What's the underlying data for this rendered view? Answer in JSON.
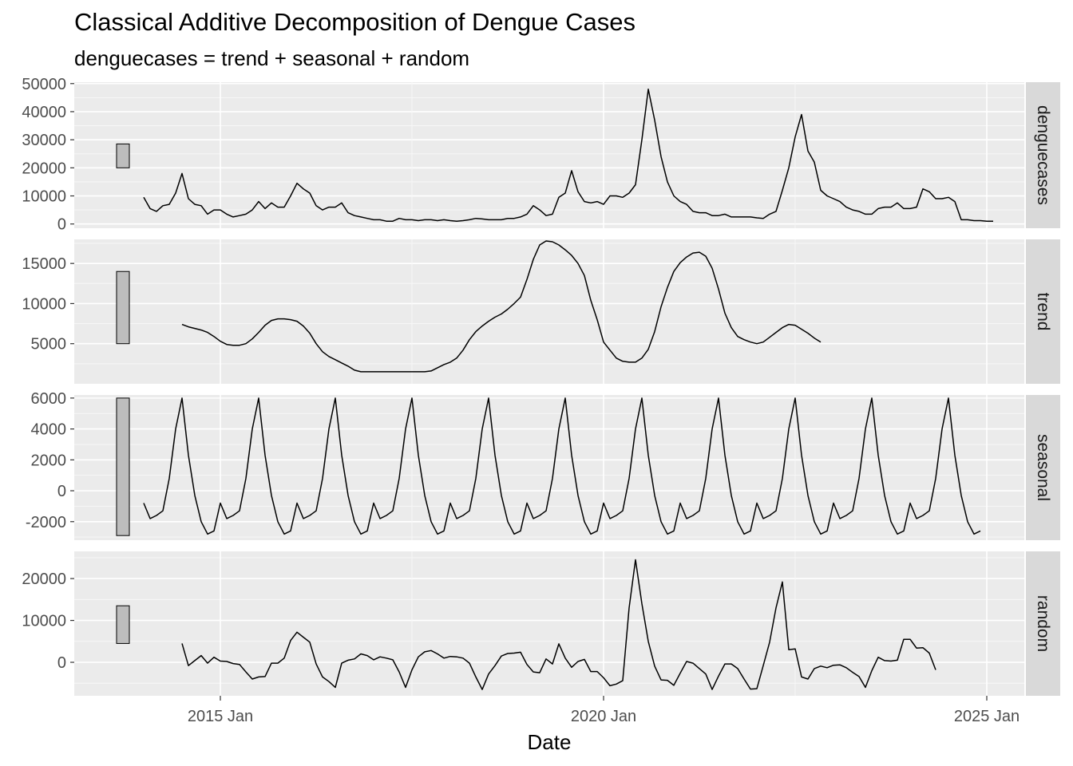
{
  "chart_data": {
    "type": "line",
    "title": "Classical Additive Decomposition of Dengue Cases",
    "subtitle": "denguecases = trend + seasonal + random",
    "xlabel": "Date",
    "x_start": "2014-01",
    "x_end": "2024-12",
    "x_ticks": [
      {
        "label": "2015 Jan",
        "date": "2015-01"
      },
      {
        "label": "2020 Jan",
        "date": "2020-01"
      },
      {
        "label": "2025 Jan",
        "date": "2025-01"
      }
    ],
    "grid": true,
    "facets": [
      {
        "name": "denguecases",
        "ylim": [
          -1500,
          50500
        ],
        "y_ticks": [
          0,
          10000,
          20000,
          30000,
          40000,
          50000
        ],
        "y_tick_labels": [
          "0",
          "10000",
          "20000",
          "30000",
          "40000",
          "50000"
        ],
        "scale_bar": [
          20000,
          28500
        ],
        "values": [
          9500,
          5500,
          4500,
          6500,
          7000,
          11000,
          18000,
          9000,
          7000,
          6500,
          3500,
          5000,
          5000,
          3500,
          2500,
          3000,
          3500,
          5000,
          8000,
          5500,
          7500,
          6000,
          6000,
          10000,
          14500,
          12500,
          11000,
          6500,
          5000,
          6000,
          6000,
          7500,
          4000,
          3000,
          2500,
          2000,
          1500,
          1500,
          1000,
          1000,
          2000,
          1500,
          1500,
          1200,
          1500,
          1500,
          1200,
          1500,
          1200,
          1000,
          1200,
          1500,
          2000,
          1800,
          1500,
          1500,
          1500,
          2000,
          2000,
          2500,
          3500,
          6500,
          5000,
          3000,
          3500,
          9500,
          11000,
          19000,
          11500,
          8000,
          7500,
          8000,
          7000,
          10000,
          10000,
          9500,
          11000,
          14000,
          30000,
          48000,
          37000,
          24000,
          15000,
          10000,
          8000,
          7000,
          4500,
          4000,
          4000,
          3000,
          3000,
          3500,
          2500,
          2500,
          2500,
          2500,
          2200,
          2000,
          3500,
          4500,
          12000,
          20000,
          31000,
          39000,
          26000,
          22000,
          12000,
          10000,
          9000,
          8000,
          6000,
          5000,
          4500,
          3500,
          3500,
          5500,
          6000,
          6000,
          7500,
          5500,
          5500,
          6000,
          12500,
          11500,
          9000,
          9000,
          9500,
          8000,
          1500,
          1500,
          1200,
          1200,
          1000,
          1000
        ]
      },
      {
        "name": "trend",
        "ylim": [
          0,
          18000
        ],
        "y_ticks": [
          5000,
          10000,
          15000
        ],
        "y_tick_labels": [
          "5000",
          "10000",
          "15000"
        ],
        "scale_bar": [
          5000,
          14000
        ],
        "values": [
          null,
          null,
          null,
          null,
          null,
          null,
          7400,
          7100,
          6900,
          6700,
          6400,
          5900,
          5300,
          4900,
          4800,
          4800,
          5000,
          5600,
          6400,
          7300,
          7900,
          8100,
          8100,
          8000,
          7800,
          7200,
          6300,
          5000,
          4000,
          3400,
          3000,
          2600,
          2200,
          1700,
          1500,
          1500,
          1500,
          1500,
          1500,
          1500,
          1500,
          1500,
          1500,
          1500,
          1500,
          1600,
          2000,
          2400,
          2700,
          3200,
          4200,
          5500,
          6500,
          7200,
          7800,
          8300,
          8700,
          9300,
          10000,
          10800,
          13000,
          15500,
          17300,
          17800,
          17700,
          17300,
          16700,
          16000,
          15000,
          13500,
          10400,
          8000,
          5200,
          4200,
          3200,
          2800,
          2700,
          2700,
          3200,
          4300,
          6500,
          9600,
          12000,
          14000,
          15100,
          15800,
          16300,
          16400,
          15900,
          14400,
          11800,
          8800,
          7000,
          5900,
          5500,
          5200,
          5000,
          5200,
          5800,
          6400,
          7000,
          7400,
          7300,
          6800,
          6300,
          5700,
          5200,
          null,
          null,
          null,
          null,
          null,
          null
        ]
      },
      {
        "name": "seasonal",
        "ylim": [
          -3200,
          6200
        ],
        "y_ticks": [
          -2000,
          0,
          2000,
          4000,
          6000
        ],
        "y_tick_labels": [
          "-2000",
          "0",
          "2000",
          "4000",
          "6000"
        ],
        "scale_bar": [
          -2900,
          6000
        ],
        "values": [
          -800,
          -1800,
          -1600,
          -1300,
          800,
          4000,
          6000,
          2300,
          -300,
          -2000,
          -2800,
          -2600,
          -800,
          -1800,
          -1600,
          -1300,
          800,
          4000,
          6000,
          2300,
          -300,
          -2000,
          -2800,
          -2600,
          -800,
          -1800,
          -1600,
          -1300,
          800,
          4000,
          6000,
          2300,
          -300,
          -2000,
          -2800,
          -2600,
          -800,
          -1800,
          -1600,
          -1300,
          800,
          4000,
          6000,
          2300,
          -300,
          -2000,
          -2800,
          -2600,
          -800,
          -1800,
          -1600,
          -1300,
          800,
          4000,
          6000,
          2300,
          -300,
          -2000,
          -2800,
          -2600,
          -800,
          -1800,
          -1600,
          -1300,
          800,
          4000,
          6000,
          2300,
          -300,
          -2000,
          -2800,
          -2600,
          -800,
          -1800,
          -1600,
          -1300,
          800,
          4000,
          6000,
          2300,
          -300,
          -2000,
          -2800,
          -2600,
          -800,
          -1800,
          -1600,
          -1300,
          800,
          4000,
          6000,
          2300,
          -300,
          -2000,
          -2800,
          -2600,
          -800,
          -1800,
          -1600,
          -1300,
          800,
          4000,
          6000,
          2300,
          -300,
          -2000,
          -2800,
          -2600,
          -800,
          -1800,
          -1600,
          -1300,
          800,
          4000,
          6000,
          2300,
          -300,
          -2000,
          -2800,
          -2600,
          -800,
          -1800,
          -1600,
          -1300,
          800,
          4000,
          6000,
          2300,
          -300,
          -2000,
          -2800,
          -2600
        ]
      },
      {
        "name": "random",
        "ylim": [
          -8000,
          26500
        ],
        "y_ticks": [
          0,
          10000,
          20000
        ],
        "y_tick_labels": [
          "0",
          "10000",
          "20000"
        ],
        "scale_bar": [
          4500,
          13500
        ],
        "values": [
          null,
          null,
          null,
          null,
          null,
          null,
          4500,
          -800,
          400,
          1600,
          -200,
          1200,
          300,
          200,
          -300,
          -500,
          -2300,
          -4000,
          -3500,
          -3400,
          -200,
          -200,
          1000,
          5200,
          7200,
          6000,
          4800,
          -400,
          -3500,
          -4600,
          -6000,
          -200,
          500,
          800,
          2000,
          1600,
          600,
          1300,
          1000,
          600,
          -2300,
          -6000,
          -1800,
          1300,
          2500,
          2800,
          2000,
          1000,
          1400,
          1300,
          1000,
          -200,
          -3500,
          -6500,
          -2800,
          -800,
          1500,
          2100,
          2200,
          2400,
          -500,
          -2300,
          -2500,
          800,
          -400,
          4400,
          1000,
          -1200,
          200,
          700,
          -2200,
          -2200,
          -3700,
          -5600,
          -5200,
          -4400,
          13000,
          24500,
          14000,
          5000,
          -900,
          -4200,
          -4300,
          -5500,
          -2600,
          200,
          -200,
          -1500,
          -2800,
          -6500,
          -3300,
          -400,
          -400,
          -1500,
          -4000,
          -6400,
          -6300,
          -800,
          4800,
          13000,
          19200,
          3000,
          3200,
          -3500,
          -4000,
          -1500,
          -900,
          -1300,
          -700,
          -600,
          -1300,
          -2400,
          -3400,
          -6000,
          -2000,
          1200,
          400,
          300,
          500,
          5500,
          5500,
          3400,
          3500,
          2200,
          -1800,
          null,
          null,
          null,
          null,
          null,
          null
        ]
      }
    ]
  }
}
